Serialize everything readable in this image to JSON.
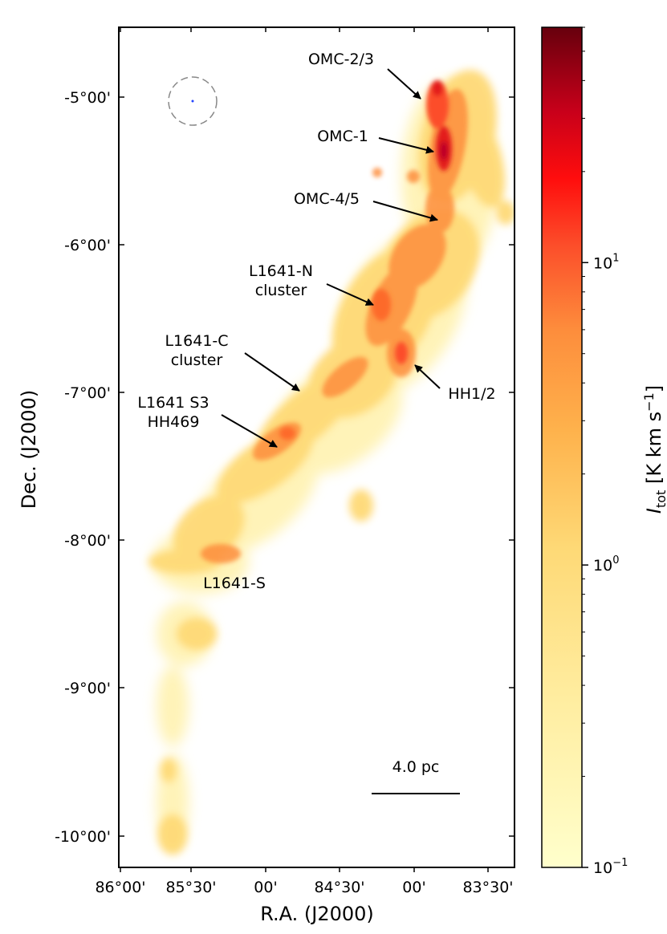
{
  "figure": {
    "xlabel": "R.A. (J2000)",
    "ylabel": "Dec. (J2000)",
    "colorbar_label": "I_tot [K km s^-1]",
    "colorbar_label_parts": {
      "symbol": "I",
      "subscript": "tot",
      "units_pre": " [K km s",
      "units_exp": "−1",
      "units_post": "]"
    },
    "scale_bar_label": "4.0 pc",
    "colormap": "YlOrRd",
    "colors": {
      "low": "#ffffcc",
      "mid": "#fd8d3c",
      "high": "#67000d"
    }
  },
  "chart_data": {
    "type": "heatmap",
    "title": "",
    "xlabel": "R.A. (J2000)",
    "ylabel": "Dec. (J2000)",
    "x_ticks": [
      "86°00'",
      "85°30'",
      "00'",
      "84°30'",
      "00'",
      "83°30'"
    ],
    "y_ticks": [
      "-5°00'",
      "-6°00'",
      "-7°00'",
      "-8°00'",
      "-9°00'",
      "-10°00'"
    ],
    "xlim_deg": [
      86.0,
      83.35
    ],
    "ylim_deg": [
      -10.2,
      -4.53
    ],
    "colorbar": {
      "scale": "log",
      "range": [
        0.1,
        60
      ],
      "ticks": [
        "10^-1",
        "10^0",
        "10^1"
      ]
    },
    "annotations": [
      {
        "id": "omc23",
        "lines": [
          "OMC-2/3"
        ],
        "ra": 83.85,
        "dec": -5.18
      },
      {
        "id": "omc1",
        "lines": [
          "OMC-1"
        ],
        "ra": 83.82,
        "dec": -5.39
      },
      {
        "id": "omc45",
        "lines": [
          "OMC-4/5"
        ],
        "ra": 83.85,
        "dec": -5.85
      },
      {
        "id": "l1641n",
        "lines": [
          "L1641-N",
          "cluster"
        ],
        "ra": 84.28,
        "dec": -6.4
      },
      {
        "id": "l1641c",
        "lines": [
          "L1641-C",
          "cluster"
        ],
        "ra": 84.78,
        "dec": -7.0
      },
      {
        "id": "hh12",
        "lines": [
          "HH1/2"
        ],
        "ra": 84.0,
        "dec": -6.8
      },
      {
        "id": "l1641s3",
        "lines": [
          "L1641 S3",
          "HH469"
        ],
        "ra": 84.95,
        "dec": -7.38
      },
      {
        "id": "l1641s",
        "lines": [
          "L1641-S"
        ],
        "ra": 85.5,
        "dec": -8.28
      }
    ],
    "filament_intensity": [
      {
        "ra": 83.76,
        "dec": -5.0,
        "I": 12
      },
      {
        "ra": 83.82,
        "dec": -5.15,
        "I": 18
      },
      {
        "ra": 83.8,
        "dec": -5.38,
        "I": 25
      },
      {
        "ra": 83.82,
        "dec": -5.6,
        "I": 6
      },
      {
        "ra": 83.9,
        "dec": -5.85,
        "I": 4
      },
      {
        "ra": 84.05,
        "dec": -6.1,
        "I": 2.5
      },
      {
        "ra": 84.2,
        "dec": -6.4,
        "I": 3.5
      },
      {
        "ra": 84.05,
        "dec": -6.75,
        "I": 3
      },
      {
        "ra": 84.5,
        "dec": -6.9,
        "I": 1.8
      },
      {
        "ra": 84.75,
        "dec": -7.2,
        "I": 1.5
      },
      {
        "ra": 84.95,
        "dec": -7.4,
        "I": 2.5
      },
      {
        "ra": 85.2,
        "dec": -7.7,
        "I": 1.0
      },
      {
        "ra": 85.45,
        "dec": -8.1,
        "I": 1.4
      },
      {
        "ra": 85.55,
        "dec": -8.7,
        "I": 0.4
      },
      {
        "ra": 85.6,
        "dec": -9.5,
        "I": 0.25
      },
      {
        "ra": 85.55,
        "dec": -10.0,
        "I": 0.4
      }
    ]
  }
}
